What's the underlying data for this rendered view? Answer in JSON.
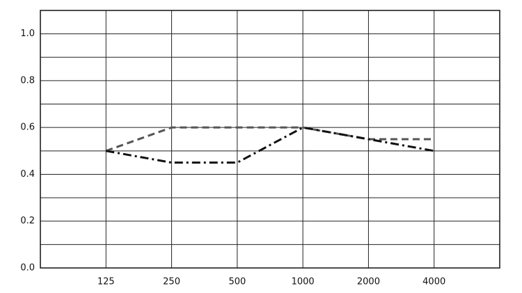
{
  "chart_data": {
    "type": "line",
    "categories": [
      "125",
      "250",
      "500",
      "1000",
      "2000",
      "4000"
    ],
    "series": [
      {
        "color": "#555555",
        "dash": "dashed",
        "values": [
          0.5,
          0.6,
          0.6,
          0.6,
          0.55,
          0.55
        ]
      },
      {
        "color": "#111111",
        "dash": "dashdot",
        "values": [
          0.5,
          0.45,
          0.45,
          0.6,
          0.55,
          0.5
        ]
      }
    ],
    "ylim": [
      0,
      1.1
    ],
    "yticks": [
      {
        "value": 0,
        "label": "0.0"
      },
      0.2,
      0.4,
      0.6,
      0.8,
      {
        "value": 1,
        "label": "1.0"
      }
    ],
    "minor_yticks": [
      0.1,
      0.3,
      0.5,
      0.7,
      0.9
    ],
    "grid": true
  }
}
